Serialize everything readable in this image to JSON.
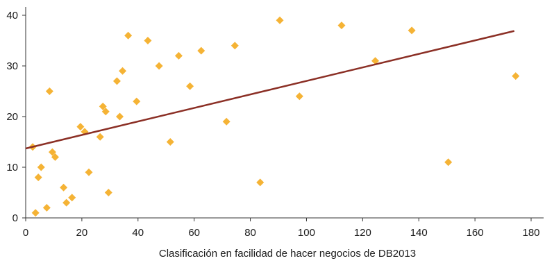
{
  "chart_data": {
    "type": "scatter",
    "title": "",
    "xlabel": "Clasificación en facilidad de hacer negocios de DB2013",
    "ylabel": "",
    "xlim": [
      0,
      180
    ],
    "ylim": [
      0,
      40
    ],
    "xticks": [
      0,
      20,
      40,
      60,
      80,
      100,
      120,
      140,
      160,
      180
    ],
    "yticks": [
      0,
      10,
      20,
      30,
      40
    ],
    "grid": false,
    "legend": "none",
    "colors": {
      "points": "#f5b335",
      "trendline": "#8b2f25",
      "axis": "#333333"
    },
    "series": [
      {
        "points": [
          [
            2.5,
            14
          ],
          [
            3.5,
            1
          ],
          [
            4.5,
            8
          ],
          [
            5.5,
            10
          ],
          [
            7.5,
            2
          ],
          [
            8.5,
            25
          ],
          [
            9.5,
            13
          ],
          [
            10.5,
            12
          ],
          [
            13.5,
            6
          ],
          [
            14.5,
            3
          ],
          [
            16.5,
            4
          ],
          [
            19.5,
            18
          ],
          [
            21,
            17
          ],
          [
            22.5,
            9
          ],
          [
            26.5,
            16
          ],
          [
            27.5,
            22
          ],
          [
            28.5,
            21
          ],
          [
            29.5,
            5
          ],
          [
            32.5,
            27
          ],
          [
            33.5,
            20
          ],
          [
            34.5,
            29
          ],
          [
            36.5,
            36
          ],
          [
            39.5,
            23
          ],
          [
            43.5,
            35
          ],
          [
            47.5,
            30
          ],
          [
            51.5,
            15
          ],
          [
            54.5,
            32
          ],
          [
            58.5,
            26
          ],
          [
            62.5,
            33
          ],
          [
            71.5,
            19
          ],
          [
            74.5,
            34
          ],
          [
            83.5,
            7
          ],
          [
            90.5,
            39
          ],
          [
            97.5,
            24
          ],
          [
            112.5,
            38
          ],
          [
            124.5,
            31
          ],
          [
            137.5,
            37
          ],
          [
            150.5,
            11
          ],
          [
            174.5,
            28
          ]
        ]
      }
    ],
    "trendline": {
      "x": [
        0,
        174
      ],
      "y": [
        13.7,
        36.9
      ]
    }
  }
}
